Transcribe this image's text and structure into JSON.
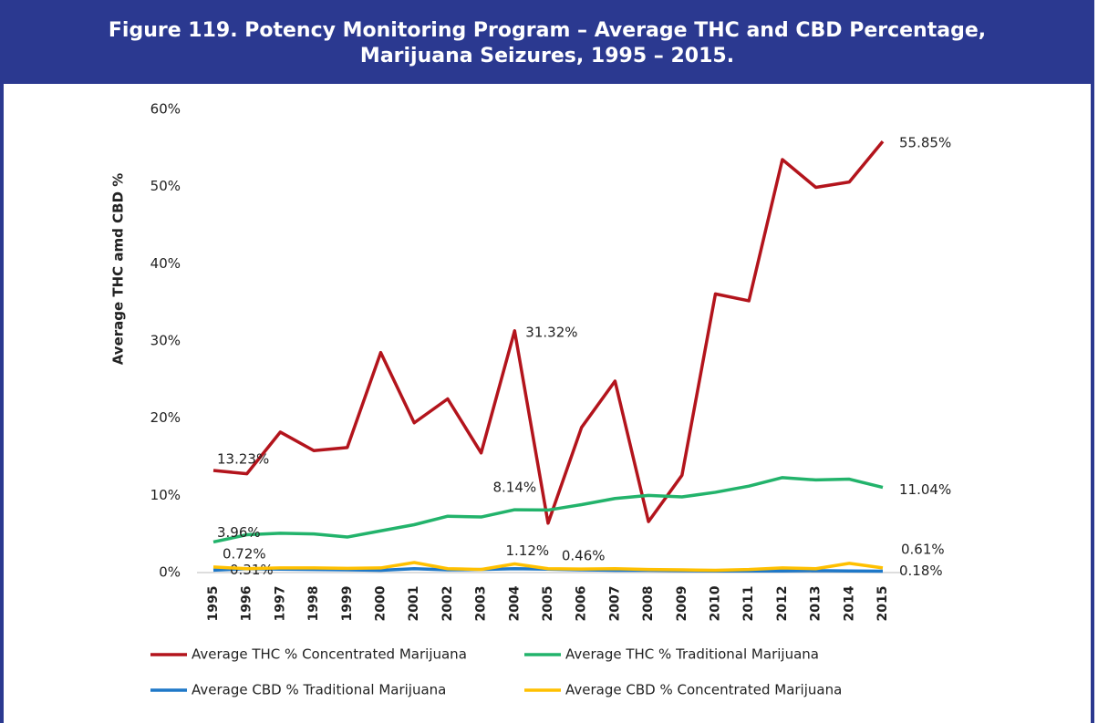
{
  "chart_data": {
    "type": "line",
    "title": "Figure 119. Potency Monitoring Program – Average THC and CBD Percentage,",
    "subtitle": "Marijuana Seizures, 1995 – 2015.",
    "y_label": "Average THC amd CBD %",
    "categories": [
      "1995",
      "1996",
      "1997",
      "1998",
      "1999",
      "2000",
      "2001",
      "2002",
      "2003",
      "2004",
      "2005",
      "2006",
      "2007",
      "2008",
      "2009",
      "2010",
      "2011",
      "2012",
      "2013",
      "2014",
      "2015"
    ],
    "ylim": [
      0,
      60
    ],
    "yticks": [
      {
        "value": 0,
        "label": "0%"
      },
      {
        "value": 10,
        "label": "10%"
      },
      {
        "value": 20,
        "label": "20%"
      },
      {
        "value": 30,
        "label": "30%"
      },
      {
        "value": 40,
        "label": "40%"
      },
      {
        "value": 50,
        "label": "50%"
      },
      {
        "value": 60,
        "label": "60%"
      }
    ],
    "grid": false,
    "series": [
      {
        "name": "Average THC %  Concentrated Marijuana",
        "color": "#b3141c",
        "values": [
          13.23,
          12.8,
          18.2,
          15.8,
          16.2,
          28.5,
          19.4,
          22.5,
          15.5,
          31.32,
          6.4,
          18.8,
          24.8,
          6.6,
          12.6,
          36.1,
          35.2,
          53.5,
          49.9,
          50.6,
          55.85
        ],
        "value_labels": [
          "13.23%",
          null,
          null,
          null,
          null,
          null,
          null,
          null,
          null,
          "31.32%",
          null,
          null,
          null,
          null,
          null,
          null,
          null,
          null,
          null,
          null,
          "55.85%"
        ]
      },
      {
        "name": "Average THC %  Traditional Marijuana",
        "color": "#22b36b",
        "values": [
          3.96,
          4.9,
          5.1,
          5.0,
          4.6,
          5.4,
          6.2,
          7.3,
          7.2,
          8.14,
          8.1,
          8.8,
          9.6,
          10.0,
          9.8,
          10.4,
          11.2,
          12.3,
          12.0,
          12.1,
          11.04
        ],
        "value_labels": [
          "3.96%",
          null,
          null,
          null,
          null,
          null,
          null,
          null,
          null,
          "8.14%",
          null,
          null,
          null,
          null,
          null,
          null,
          null,
          null,
          null,
          null,
          "11.04%"
        ]
      },
      {
        "name": "Average CBD %  Traditional Marijuana",
        "color": "#1f78c8",
        "values": [
          0.31,
          0.5,
          0.45,
          0.4,
          0.35,
          0.3,
          0.5,
          0.35,
          0.4,
          0.5,
          0.45,
          0.35,
          0.3,
          0.3,
          0.25,
          0.2,
          0.2,
          0.2,
          0.25,
          0.2,
          0.18
        ],
        "value_labels": [
          "0.31%",
          null,
          null,
          null,
          null,
          null,
          null,
          null,
          null,
          null,
          null,
          null,
          null,
          null,
          null,
          null,
          null,
          null,
          null,
          null,
          "0.18%"
        ]
      },
      {
        "name": "Average CBD % Concentrated Marijuana",
        "color": "#ffc000",
        "values": [
          0.72,
          0.5,
          0.6,
          0.6,
          0.55,
          0.6,
          1.3,
          0.5,
          0.4,
          1.12,
          0.5,
          0.46,
          0.5,
          0.4,
          0.35,
          0.3,
          0.4,
          0.6,
          0.5,
          1.2,
          0.61
        ],
        "value_labels": [
          "0.72%",
          null,
          null,
          null,
          null,
          null,
          null,
          null,
          null,
          "1.12%",
          null,
          "0.46%",
          null,
          null,
          null,
          null,
          null,
          null,
          null,
          null,
          "0.61%"
        ]
      }
    ]
  }
}
